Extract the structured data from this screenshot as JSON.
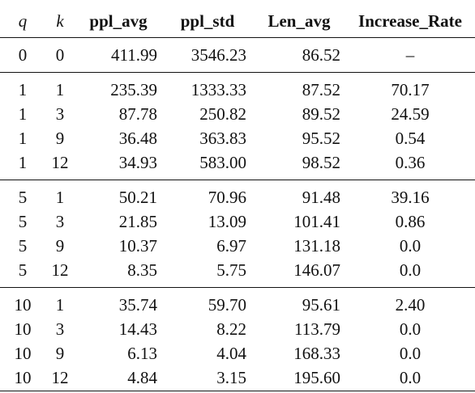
{
  "table": {
    "headers": {
      "q": "q",
      "k": "k",
      "ppl_avg": "ppl_avg",
      "ppl_std": "ppl_std",
      "len_avg": "Len_avg",
      "increase_rate": "Increase_Rate"
    },
    "rows": [
      {
        "q": "0",
        "k": "0",
        "ppl_avg": "411.99",
        "ppl_std": "3546.23",
        "len_avg": "86.52",
        "increase_rate": "–"
      },
      {
        "q": "1",
        "k": "1",
        "ppl_avg": "235.39",
        "ppl_std": "1333.33",
        "len_avg": "87.52",
        "increase_rate": "70.17"
      },
      {
        "q": "1",
        "k": "3",
        "ppl_avg": "87.78",
        "ppl_std": "250.82",
        "len_avg": "89.52",
        "increase_rate": "24.59"
      },
      {
        "q": "1",
        "k": "9",
        "ppl_avg": "36.48",
        "ppl_std": "363.83",
        "len_avg": "95.52",
        "increase_rate": "0.54"
      },
      {
        "q": "1",
        "k": "12",
        "ppl_avg": "34.93",
        "ppl_std": "583.00",
        "len_avg": "98.52",
        "increase_rate": "0.36"
      },
      {
        "q": "5",
        "k": "1",
        "ppl_avg": "50.21",
        "ppl_std": "70.96",
        "len_avg": "91.48",
        "increase_rate": "39.16"
      },
      {
        "q": "5",
        "k": "3",
        "ppl_avg": "21.85",
        "ppl_std": "13.09",
        "len_avg": "101.41",
        "increase_rate": "0.86"
      },
      {
        "q": "5",
        "k": "9",
        "ppl_avg": "10.37",
        "ppl_std": "6.97",
        "len_avg": "131.18",
        "increase_rate": "0.0"
      },
      {
        "q": "5",
        "k": "12",
        "ppl_avg": "8.35",
        "ppl_std": "5.75",
        "len_avg": "146.07",
        "increase_rate": "0.0"
      },
      {
        "q": "10",
        "k": "1",
        "ppl_avg": "35.74",
        "ppl_std": "59.70",
        "len_avg": "95.61",
        "increase_rate": "2.40"
      },
      {
        "q": "10",
        "k": "3",
        "ppl_avg": "14.43",
        "ppl_std": "8.22",
        "len_avg": "113.79",
        "increase_rate": "0.0"
      },
      {
        "q": "10",
        "k": "9",
        "ppl_avg": "6.13",
        "ppl_std": "4.04",
        "len_avg": "168.33",
        "increase_rate": "0.0"
      },
      {
        "q": "10",
        "k": "12",
        "ppl_avg": "4.84",
        "ppl_std": "3.15",
        "len_avg": "195.60",
        "increase_rate": "0.0"
      }
    ]
  }
}
